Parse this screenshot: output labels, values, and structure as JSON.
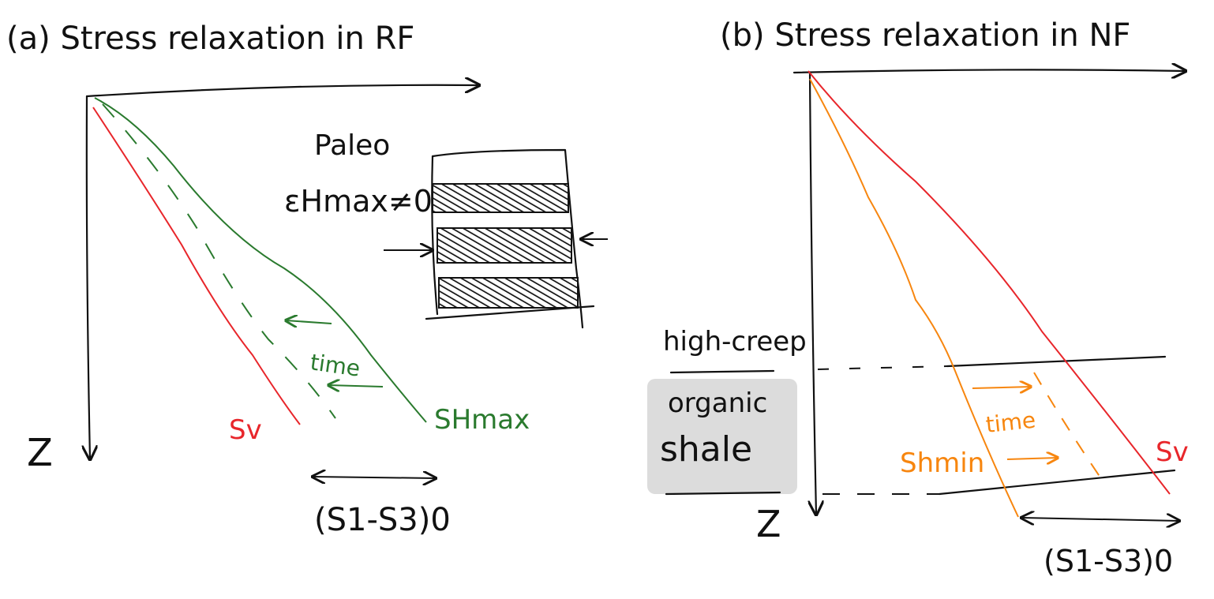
{
  "colors": {
    "ink": "#111111",
    "sv_red": "#e8262b",
    "shmax_green": "#2a7a2e",
    "shmin_orange": "#f7860f",
    "shale_fill": "#dcdcdc"
  },
  "panel_a": {
    "title": "(a) Stress relaxation in RF",
    "depth_label": "Z",
    "sv_label": "Sv",
    "shmax_label": "SHmax",
    "time_label": "time",
    "paleo_label": "Paleo",
    "strain_label": "εHmax≠0",
    "diff_stress_label": "(S1-S3)0"
  },
  "panel_b": {
    "title": "(b) Stress relaxation in NF",
    "depth_label": "Z",
    "sv_label": "Sv",
    "shmin_label": "Shmin",
    "time_label": "time",
    "high_creep_label": "high-creep",
    "organic_label": "organic",
    "shale_label": "shale",
    "diff_stress_label": "(S1-S3)0"
  }
}
